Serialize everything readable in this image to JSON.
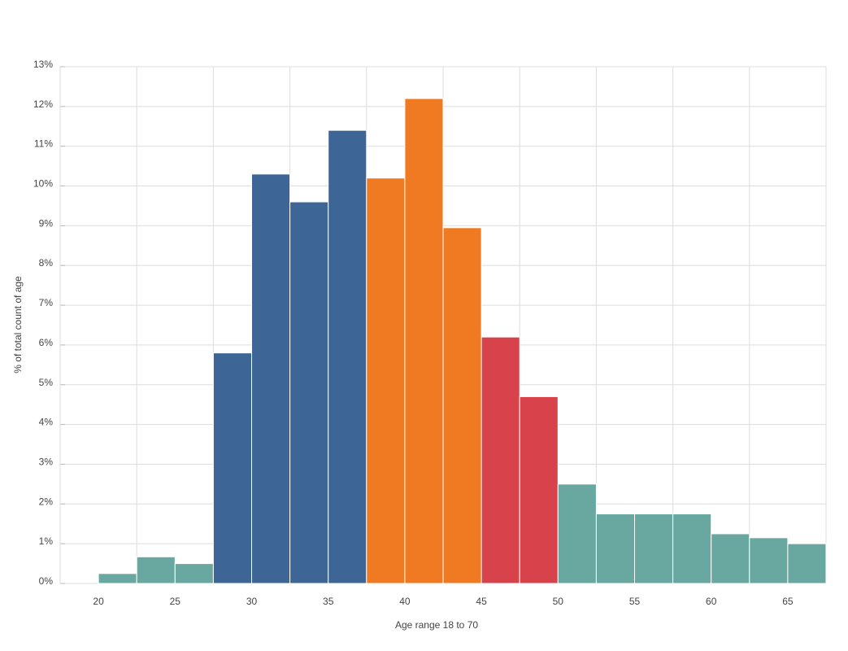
{
  "chart_data": {
    "type": "bar",
    "title": "",
    "xlabel": "Age range 18 to 70",
    "ylabel": "% of total count of age",
    "bin_width": 2.5,
    "xlim": [
      17.5,
      67.5
    ],
    "ylim": [
      0,
      13
    ],
    "x_ticks": [
      20,
      25,
      30,
      35,
      40,
      45,
      50,
      55,
      60,
      65
    ],
    "y_ticks": [
      0,
      1,
      2,
      3,
      4,
      5,
      6,
      7,
      8,
      9,
      10,
      11,
      12,
      13
    ],
    "y_tick_suffix": "%",
    "grid": true,
    "legend": "none",
    "colors": {
      "teal": "#68a8a0",
      "blue": "#3d6596",
      "orange": "#ef7a22",
      "red": "#d8424a"
    },
    "bins": [
      {
        "start": 17.5,
        "end": 20.0,
        "value": 0.0,
        "color": "teal"
      },
      {
        "start": 20.0,
        "end": 22.5,
        "value": 0.25,
        "color": "teal"
      },
      {
        "start": 22.5,
        "end": 25.0,
        "value": 0.67,
        "color": "teal"
      },
      {
        "start": 25.0,
        "end": 27.5,
        "value": 0.5,
        "color": "teal"
      },
      {
        "start": 27.5,
        "end": 30.0,
        "value": 5.8,
        "color": "blue"
      },
      {
        "start": 30.0,
        "end": 32.5,
        "value": 10.3,
        "color": "blue"
      },
      {
        "start": 32.5,
        "end": 35.0,
        "value": 9.6,
        "color": "blue"
      },
      {
        "start": 35.0,
        "end": 37.5,
        "value": 11.4,
        "color": "blue"
      },
      {
        "start": 37.5,
        "end": 40.0,
        "value": 10.2,
        "color": "orange"
      },
      {
        "start": 40.0,
        "end": 42.5,
        "value": 12.2,
        "color": "orange"
      },
      {
        "start": 42.5,
        "end": 45.0,
        "value": 8.95,
        "color": "orange"
      },
      {
        "start": 45.0,
        "end": 47.5,
        "value": 6.2,
        "color": "red"
      },
      {
        "start": 47.5,
        "end": 50.0,
        "value": 4.7,
        "color": "red"
      },
      {
        "start": 50.0,
        "end": 52.5,
        "value": 2.5,
        "color": "teal"
      },
      {
        "start": 52.5,
        "end": 55.0,
        "value": 1.75,
        "color": "teal"
      },
      {
        "start": 55.0,
        "end": 57.5,
        "value": 1.75,
        "color": "teal"
      },
      {
        "start": 57.5,
        "end": 60.0,
        "value": 1.75,
        "color": "teal"
      },
      {
        "start": 60.0,
        "end": 62.5,
        "value": 1.25,
        "color": "teal"
      },
      {
        "start": 62.5,
        "end": 65.0,
        "value": 1.15,
        "color": "teal"
      },
      {
        "start": 65.0,
        "end": 67.5,
        "value": 1.0,
        "color": "teal"
      }
    ]
  }
}
